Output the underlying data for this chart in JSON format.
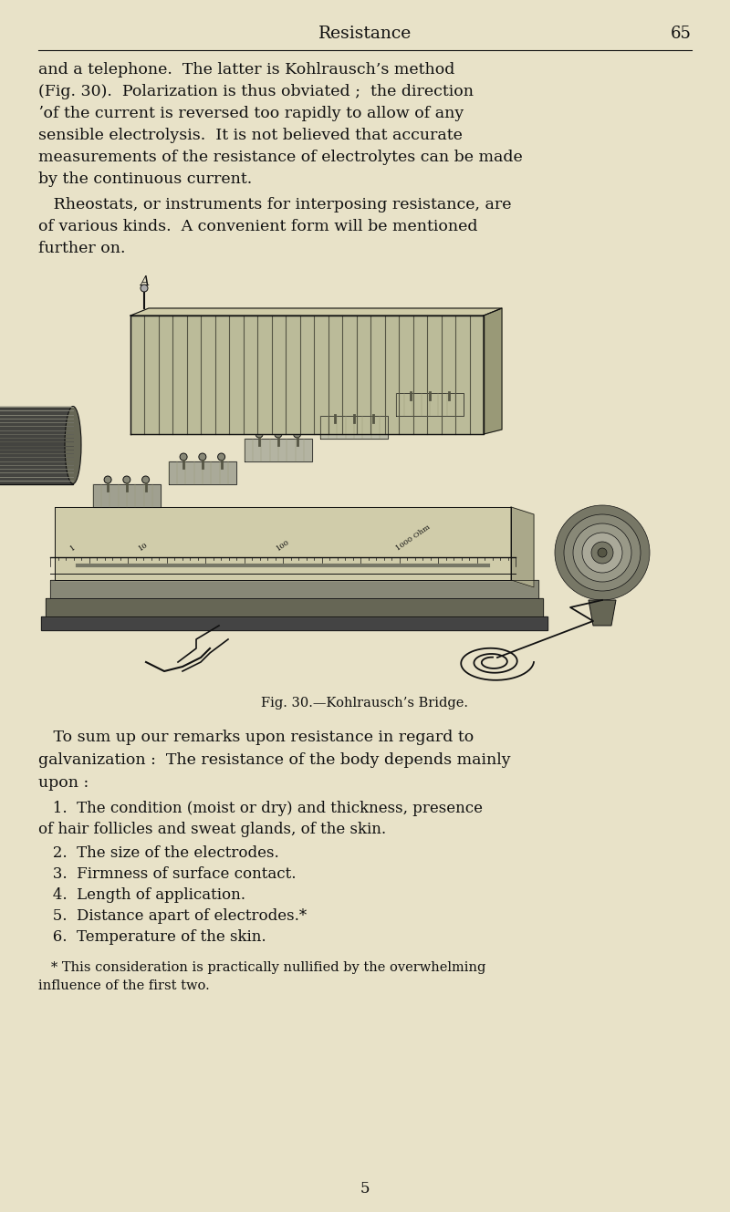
{
  "bg_color": "#e8e2c8",
  "text_color": "#1a1a1a",
  "dark": "#111111",
  "mid_gray": "#555555",
  "light_gray": "#aaaaaa",
  "header_title": "Resistance",
  "header_page": "65",
  "fig_caption": "Fig. 30.—Kohlrausch’s Bridge.",
  "page_num": "5",
  "para1_lines": [
    "and a telephone.  The latter is Kohlrausch’s method",
    "(Fig. 30).  Polarization is thus obviated ;  the direction",
    "ʼof the current is reversed too rapidly to allow of any",
    "sensible electrolysis.  It is not believed that accurate",
    "measurements of the resistance of electrolytes can be made",
    "by the continuous current."
  ],
  "para2_lines": [
    "   Rheostats, or instruments for interposing resistance, are",
    "of various kinds.  A convenient form will be mentioned",
    "further on."
  ],
  "para3_lines": [
    "   To sum up our remarks upon resistance in regard to",
    "galvanization :  The resistance of the body depends mainly",
    "upon :"
  ],
  "list_lines": [
    "   1.  The condition (moist or dry) and thickness, presence",
    "of hair follicles and sweat glands, of the skin.",
    "   2.  The size of the electrodes.",
    "   3.  Firmness of surface contact.",
    "   4.  Length of application.",
    "   5.  Distance apart of electrodes.*",
    "   6.  Temperature of the skin."
  ],
  "footnote_lines": [
    "   * This consideration is practically nullified by the overwhelming",
    "influence of the first two."
  ]
}
